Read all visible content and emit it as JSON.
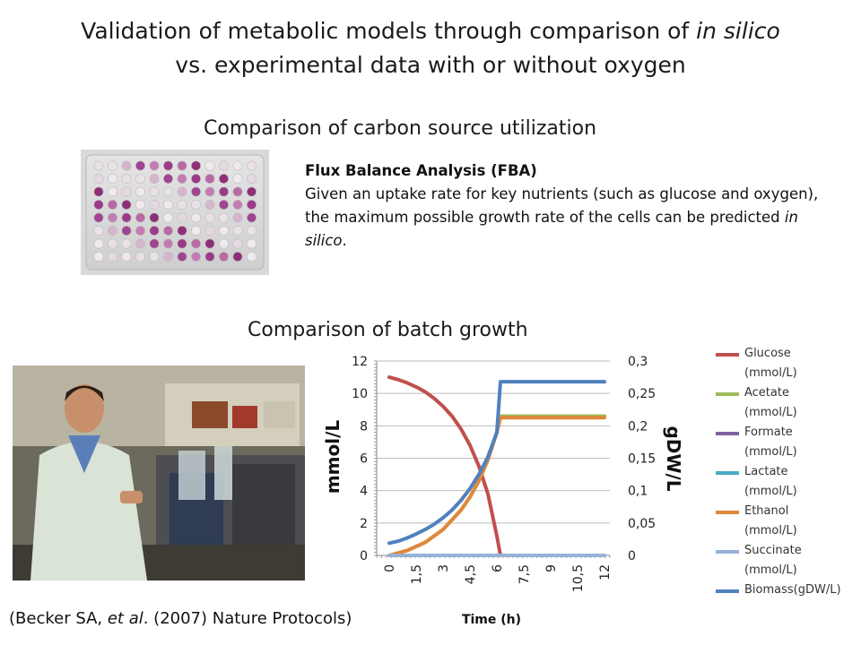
{
  "title": {
    "line1_pre": "Validation of metabolic models through comparison of ",
    "line1_italic": "in silico",
    "line2": "vs. experimental data with or without oxygen"
  },
  "section_carbon": "Comparison of carbon source utilization",
  "fba": {
    "heading": "Flux Balance Analysis (FBA)",
    "body_pre": "Given an uptake rate for key nutrients (such as glucose and oxygen), the maximum possible growth rate of the cells can be predicted ",
    "body_italic": "in silico",
    "body_post": "."
  },
  "section_batch": "Comparison of batch growth",
  "citation": {
    "pre": "(Becker SA, ",
    "italic": "et al",
    "post": ". (2007) Nature Protocols)"
  },
  "chart_data": {
    "type": "line",
    "xlabel": "Time (h)",
    "ylabel_left": "mmol/L",
    "ylabel_right": "gDW/L",
    "x_ticks": [
      "0",
      "1,5",
      "3",
      "4,5",
      "6",
      "7,5",
      "9",
      "10,5",
      "12"
    ],
    "y_left_ticks": [
      "0",
      "2",
      "4",
      "6",
      "8",
      "10",
      "12"
    ],
    "y_right_ticks": [
      "0",
      "0,05",
      "0,1",
      "0,15",
      "0,2",
      "0,25",
      "0,3"
    ],
    "xlim": [
      0,
      12
    ],
    "ylim_left": [
      0,
      12
    ],
    "ylim_right": [
      0,
      0.3
    ],
    "legend_position": "right",
    "series": [
      {
        "name": "Glucose (mmol/L)",
        "color": "#c0504d",
        "axis": "left",
        "x": [
          0,
          0.5,
          1,
          1.5,
          2,
          2.5,
          3,
          3.5,
          4,
          4.5,
          5,
          5.5,
          6,
          6.2,
          7,
          8,
          9,
          10,
          11,
          12
        ],
        "y": [
          11.0,
          10.85,
          10.65,
          10.4,
          10.1,
          9.7,
          9.2,
          8.6,
          7.8,
          6.8,
          5.5,
          3.8,
          1.2,
          0,
          0,
          0,
          0,
          0,
          0,
          0
        ]
      },
      {
        "name": "Acetate (mmol/L)",
        "color": "#9bbb59",
        "axis": "left",
        "x": [
          0,
          1,
          2,
          3,
          4,
          4.5,
          5,
          5.5,
          6,
          6.2,
          7,
          8,
          9,
          10,
          11,
          12
        ],
        "y": [
          0,
          0.3,
          0.8,
          1.6,
          2.8,
          3.6,
          4.6,
          5.9,
          7.6,
          8.6,
          8.6,
          8.6,
          8.6,
          8.6,
          8.6,
          8.6
        ]
      },
      {
        "name": "Formate (mmol/L)",
        "color": "#8064a2",
        "axis": "left",
        "x": [
          0,
          12
        ],
        "y": [
          0,
          0
        ]
      },
      {
        "name": "Lactate (mmol/L)",
        "color": "#4bacc6",
        "axis": "left",
        "x": [
          0,
          12
        ],
        "y": [
          0,
          0
        ]
      },
      {
        "name": "Ethanol (mmol/L)",
        "color": "#e0883a",
        "axis": "left",
        "x": [
          0,
          1,
          2,
          3,
          4,
          4.5,
          5,
          5.5,
          6,
          6.2,
          7,
          8,
          9,
          10,
          11,
          12
        ],
        "y": [
          0,
          0.3,
          0.8,
          1.6,
          2.8,
          3.6,
          4.6,
          5.9,
          7.6,
          8.5,
          8.5,
          8.5,
          8.5,
          8.5,
          8.5,
          8.5
        ]
      },
      {
        "name": "Succinate (mmol/L)",
        "color": "#95b3d7",
        "axis": "left",
        "x": [
          0,
          12
        ],
        "y": [
          0,
          0
        ]
      },
      {
        "name": "Biomass(gDW/L)",
        "color": "#4f81bd",
        "axis": "right",
        "x": [
          0,
          0.5,
          1,
          1.5,
          2,
          2.5,
          3,
          3.5,
          4,
          4.5,
          5,
          5.5,
          6,
          6.2,
          7,
          8,
          9,
          10,
          11,
          12
        ],
        "y": [
          0.019,
          0.022,
          0.027,
          0.033,
          0.04,
          0.048,
          0.058,
          0.07,
          0.085,
          0.103,
          0.125,
          0.152,
          0.19,
          0.268,
          0.268,
          0.268,
          0.268,
          0.268,
          0.268,
          0.268
        ]
      }
    ]
  }
}
